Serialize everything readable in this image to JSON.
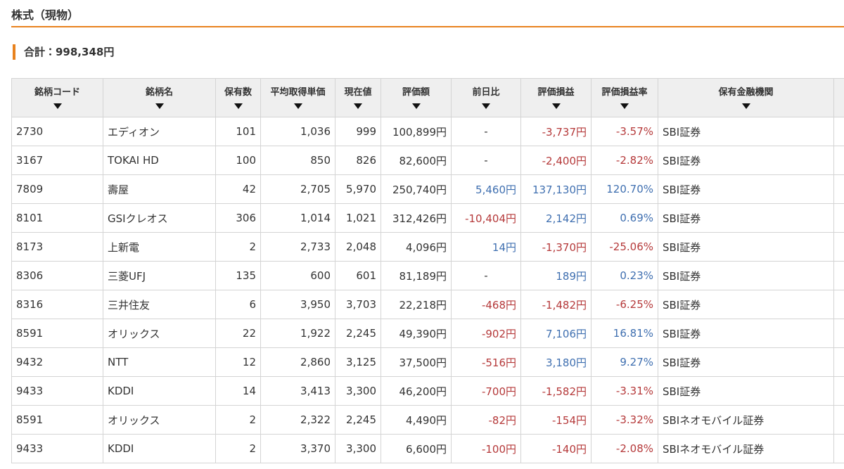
{
  "header": {
    "title": "株式（現物）",
    "total": "合計：998,348円"
  },
  "table": {
    "columns": [
      "銘柄コード",
      "銘柄名",
      "保有数",
      "平均取得単価",
      "現在値",
      "評価額",
      "前日比",
      "評価損益",
      "評価損益率",
      "保有金融機関"
    ],
    "rows": [
      [
        "2730",
        "エディオン",
        "101",
        "1,036",
        "999",
        "100,899円",
        "-",
        "-3,737円",
        "-3.57%",
        "SBI証券"
      ],
      [
        "3167",
        "TOKAI HD",
        "100",
        "850",
        "826",
        "82,600円",
        "-",
        "-2,400円",
        "-2.82%",
        "SBI証券"
      ],
      [
        "7809",
        "壽屋",
        "42",
        "2,705",
        "5,970",
        "250,740円",
        "5,460円",
        "137,130円",
        "120.70%",
        "SBI証券"
      ],
      [
        "8101",
        "GSIクレオス",
        "306",
        "1,014",
        "1,021",
        "312,426円",
        "-10,404円",
        "2,142円",
        "0.69%",
        "SBI証券"
      ],
      [
        "8173",
        "上新電",
        "2",
        "2,733",
        "2,048",
        "4,096円",
        "14円",
        "-1,370円",
        "-25.06%",
        "SBI証券"
      ],
      [
        "8306",
        "三菱UFJ",
        "135",
        "600",
        "601",
        "81,189円",
        "-",
        "189円",
        "0.23%",
        "SBI証券"
      ],
      [
        "8316",
        "三井住友",
        "6",
        "3,950",
        "3,703",
        "22,218円",
        "-468円",
        "-1,482円",
        "-6.25%",
        "SBI証券"
      ],
      [
        "8591",
        "オリックス",
        "22",
        "1,922",
        "2,245",
        "49,390円",
        "-902円",
        "7,106円",
        "16.81%",
        "SBI証券"
      ],
      [
        "9432",
        "NTT",
        "12",
        "2,860",
        "3,125",
        "37,500円",
        "-516円",
        "3,180円",
        "9.27%",
        "SBI証券"
      ],
      [
        "9433",
        "KDDI",
        "14",
        "3,413",
        "3,300",
        "46,200円",
        "-700円",
        "-1,582円",
        "-3.31%",
        "SBI証券"
      ],
      [
        "8591",
        "オリックス",
        "2",
        "2,322",
        "2,245",
        "4,490円",
        "-82円",
        "-154円",
        "-3.32%",
        "SBIネオモバイル証券"
      ],
      [
        "9433",
        "KDDI",
        "2",
        "3,370",
        "3,300",
        "6,600円",
        "-100円",
        "-140円",
        "-2.08%",
        "SBIネオモバイル証券"
      ]
    ]
  }
}
